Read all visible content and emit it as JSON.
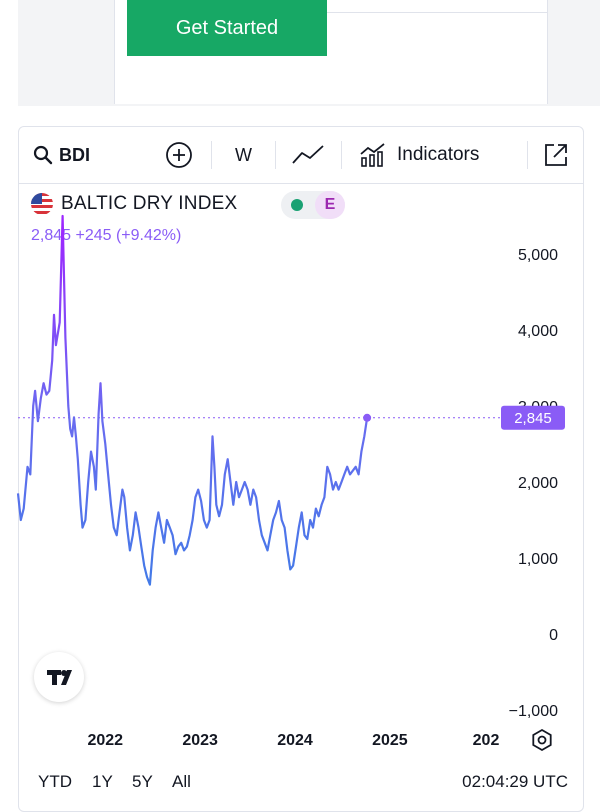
{
  "promo": {
    "cta_label": "Get Started"
  },
  "toolbar": {
    "symbol": "BDI",
    "symbol_icon": "search-icon",
    "compare_icon": "plus-circle-icon",
    "interval": "W",
    "chart_type_icon": "line-chart-icon",
    "indicators_icon": "indicators-icon",
    "indicators_label": "Indicators",
    "fullscreen_icon": "open-external-icon"
  },
  "legend": {
    "name": "BALTIC DRY INDEX",
    "flag_icon": "us-flag-icon",
    "status_icon": "market-status-dot-icon",
    "status_color": "#1aa173",
    "badge": "E",
    "value_line": "2,845 +245 (+9.42%)"
  },
  "price_tag": "2,845",
  "branding": {
    "logo": "tradingview-logo-icon",
    "logo_text": "TV"
  },
  "settings_icon": "gear-icon",
  "ranges": [
    "YTD",
    "1Y",
    "5Y",
    "All"
  ],
  "clock": "02:04:29 UTC",
  "colors": {
    "line_high": "#9c27ff",
    "line_low": "#3f7be6",
    "price_tag": "#8a5cf6"
  },
  "chart_data": {
    "type": "line",
    "title": "BALTIC DRY INDEX",
    "xlabel": "",
    "ylabel": "",
    "x_ticks": [
      "2022",
      "2023",
      "2024",
      "2025",
      "202"
    ],
    "y_ticks": [
      "5,000",
      "4,000",
      "3,000",
      "2,000",
      "1,000",
      "0",
      "−1,000"
    ],
    "ylim": [
      -1000,
      5500
    ],
    "xlim": [
      2021.08,
      2025.95
    ],
    "grid": false,
    "last_value": 2845,
    "series": [
      {
        "values": [
          [
            2021.08,
            1850
          ],
          [
            2021.11,
            1500
          ],
          [
            2021.14,
            1650
          ],
          [
            2021.18,
            2200
          ],
          [
            2021.21,
            2100
          ],
          [
            2021.24,
            3000
          ],
          [
            2021.26,
            3200
          ],
          [
            2021.29,
            2800
          ],
          [
            2021.32,
            3100
          ],
          [
            2021.35,
            3300
          ],
          [
            2021.38,
            3150
          ],
          [
            2021.41,
            3200
          ],
          [
            2021.44,
            3600
          ],
          [
            2021.46,
            4200
          ],
          [
            2021.48,
            3800
          ],
          [
            2021.52,
            4100
          ],
          [
            2021.55,
            5500
          ],
          [
            2021.58,
            3900
          ],
          [
            2021.61,
            3000
          ],
          [
            2021.63,
            2700
          ],
          [
            2021.65,
            2600
          ],
          [
            2021.67,
            2850
          ],
          [
            2021.69,
            2600
          ],
          [
            2021.71,
            2300
          ],
          [
            2021.74,
            1700
          ],
          [
            2021.76,
            1400
          ],
          [
            2021.79,
            1500
          ],
          [
            2021.82,
            2000
          ],
          [
            2021.85,
            2400
          ],
          [
            2021.88,
            2200
          ],
          [
            2021.9,
            1900
          ],
          [
            2021.93,
            2900
          ],
          [
            2021.95,
            3300
          ],
          [
            2021.97,
            2800
          ],
          [
            2022.0,
            2500
          ],
          [
            2022.03,
            2100
          ],
          [
            2022.06,
            1700
          ],
          [
            2022.09,
            1400
          ],
          [
            2022.12,
            1300
          ],
          [
            2022.15,
            1600
          ],
          [
            2022.18,
            1900
          ],
          [
            2022.2,
            1800
          ],
          [
            2022.23,
            1400
          ],
          [
            2022.26,
            1100
          ],
          [
            2022.29,
            1300
          ],
          [
            2022.32,
            1600
          ],
          [
            2022.35,
            1400
          ],
          [
            2022.38,
            1150
          ],
          [
            2022.41,
            900
          ],
          [
            2022.44,
            750
          ],
          [
            2022.47,
            650
          ],
          [
            2022.5,
            1100
          ],
          [
            2022.53,
            1400
          ],
          [
            2022.56,
            1600
          ],
          [
            2022.59,
            1400
          ],
          [
            2022.62,
            1200
          ],
          [
            2022.65,
            1500
          ],
          [
            2022.68,
            1400
          ],
          [
            2022.71,
            1300
          ],
          [
            2022.74,
            1050
          ],
          [
            2022.77,
            1150
          ],
          [
            2022.8,
            1200
          ],
          [
            2022.83,
            1100
          ],
          [
            2022.86,
            1150
          ],
          [
            2022.89,
            1300
          ],
          [
            2022.92,
            1500
          ],
          [
            2022.95,
            1800
          ],
          [
            2022.98,
            1900
          ],
          [
            2023.01,
            1750
          ],
          [
            2023.04,
            1500
          ],
          [
            2023.07,
            1400
          ],
          [
            2023.1,
            1500
          ],
          [
            2023.13,
            2600
          ],
          [
            2023.15,
            2200
          ],
          [
            2023.17,
            1700
          ],
          [
            2023.2,
            1550
          ],
          [
            2023.23,
            1700
          ],
          [
            2023.26,
            2100
          ],
          [
            2023.29,
            2300
          ],
          [
            2023.32,
            2000
          ],
          [
            2023.35,
            1700
          ],
          [
            2023.38,
            2000
          ],
          [
            2023.41,
            1800
          ],
          [
            2023.44,
            1900
          ],
          [
            2023.47,
            2000
          ],
          [
            2023.5,
            1900
          ],
          [
            2023.53,
            1700
          ],
          [
            2023.56,
            1900
          ],
          [
            2023.59,
            1800
          ],
          [
            2023.62,
            1500
          ],
          [
            2023.65,
            1300
          ],
          [
            2023.68,
            1200
          ],
          [
            2023.71,
            1100
          ],
          [
            2023.74,
            1300
          ],
          [
            2023.77,
            1500
          ],
          [
            2023.8,
            1600
          ],
          [
            2023.83,
            1750
          ],
          [
            2023.86,
            1500
          ],
          [
            2023.89,
            1400
          ],
          [
            2023.92,
            1100
          ],
          [
            2023.95,
            850
          ],
          [
            2023.98,
            900
          ],
          [
            2024.01,
            1150
          ],
          [
            2024.04,
            1400
          ],
          [
            2024.07,
            1600
          ],
          [
            2024.1,
            1300
          ],
          [
            2024.13,
            1250
          ],
          [
            2024.16,
            1500
          ],
          [
            2024.19,
            1400
          ],
          [
            2024.22,
            1650
          ],
          [
            2024.25,
            1550
          ],
          [
            2024.28,
            1700
          ],
          [
            2024.31,
            1800
          ],
          [
            2024.34,
            2200
          ],
          [
            2024.37,
            2100
          ],
          [
            2024.4,
            1900
          ],
          [
            2024.43,
            2000
          ],
          [
            2024.46,
            1900
          ],
          [
            2024.49,
            2000
          ],
          [
            2024.52,
            2100
          ],
          [
            2024.55,
            2200
          ],
          [
            2024.58,
            2100
          ],
          [
            2024.61,
            2150
          ],
          [
            2024.64,
            2200
          ],
          [
            2024.67,
            2100
          ],
          [
            2024.7,
            2400
          ],
          [
            2024.73,
            2600
          ],
          [
            2024.76,
            2845
          ]
        ]
      }
    ]
  }
}
